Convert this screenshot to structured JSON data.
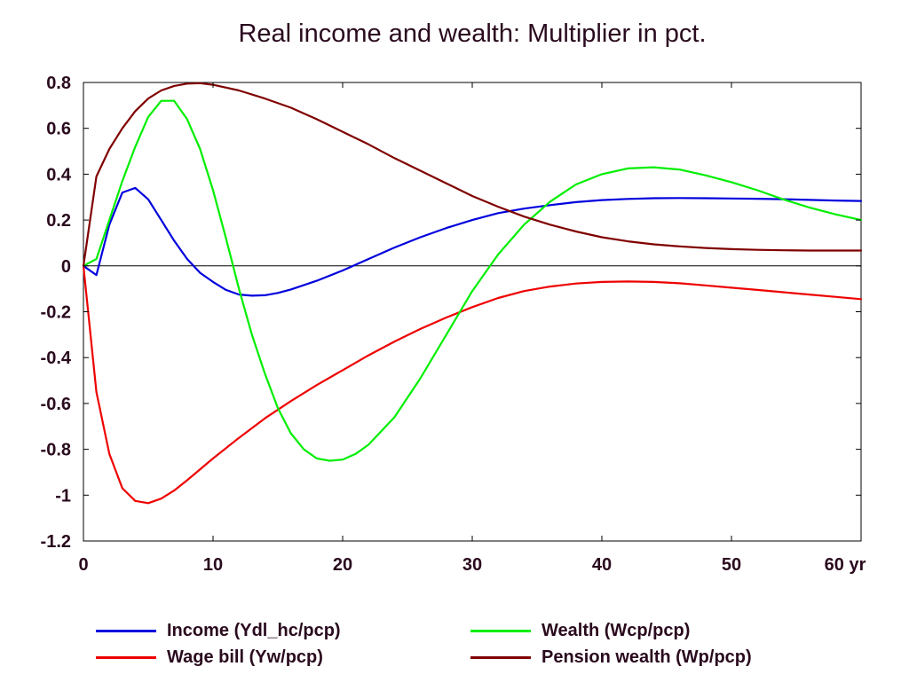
{
  "chart_data": {
    "type": "line",
    "title": "Real income and wealth: Multiplier in pct.",
    "xlabel": "",
    "ylabel": "",
    "x_unit_label": "yr",
    "xlim": [
      0,
      60
    ],
    "ylim": [
      -1.2,
      0.8
    ],
    "x_ticks": [
      0,
      10,
      20,
      30,
      40,
      50,
      60
    ],
    "x_tick_labels": [
      "0",
      "10",
      "20",
      "30",
      "40",
      "50",
      "60 yr"
    ],
    "y_ticks": [
      -1.2,
      -1,
      -0.8,
      -0.6,
      -0.4,
      -0.2,
      0,
      0.2,
      0.4,
      0.6,
      0.8
    ],
    "y_tick_labels": [
      "-1.2",
      "-1",
      "-0.8",
      "-0.6",
      "-0.4",
      "-0.2",
      "0",
      "0.2",
      "0.4",
      "0.6",
      "0.8"
    ],
    "grid": false,
    "zero_line": true,
    "legend_position": "bottom",
    "series": [
      {
        "name": "Income (Ydl_hc/pcp)",
        "color": "#0000dd",
        "x": [
          0,
          1,
          2,
          3,
          4,
          5,
          6,
          7,
          8,
          9,
          10,
          11,
          12,
          13,
          14,
          15,
          16,
          18,
          20,
          22,
          24,
          26,
          28,
          30,
          32,
          34,
          36,
          38,
          40,
          42,
          44,
          46,
          48,
          50,
          52,
          54,
          56,
          58,
          60
        ],
        "values": [
          0,
          -0.04,
          0.18,
          0.32,
          0.34,
          0.29,
          0.2,
          0.11,
          0.03,
          -0.03,
          -0.07,
          -0.105,
          -0.125,
          -0.13,
          -0.128,
          -0.118,
          -0.103,
          -0.065,
          -0.02,
          0.03,
          0.08,
          0.125,
          0.165,
          0.2,
          0.23,
          0.25,
          0.265,
          0.278,
          0.287,
          0.292,
          0.295,
          0.296,
          0.295,
          0.294,
          0.293,
          0.291,
          0.288,
          0.285,
          0.283
        ]
      },
      {
        "name": "Wage bill (Yw/pcp)",
        "color": "#ee0000",
        "x": [
          0,
          1,
          2,
          3,
          4,
          5,
          6,
          7,
          8,
          10,
          12,
          14,
          16,
          18,
          20,
          22,
          24,
          26,
          28,
          30,
          32,
          34,
          36,
          38,
          40,
          42,
          44,
          46,
          48,
          50,
          52,
          54,
          56,
          58,
          60
        ],
        "values": [
          0,
          -0.55,
          -0.82,
          -0.97,
          -1.025,
          -1.035,
          -1.015,
          -0.98,
          -0.935,
          -0.84,
          -0.75,
          -0.665,
          -0.59,
          -0.52,
          -0.455,
          -0.39,
          -0.33,
          -0.275,
          -0.225,
          -0.18,
          -0.14,
          -0.11,
          -0.09,
          -0.077,
          -0.07,
          -0.068,
          -0.07,
          -0.076,
          -0.085,
          -0.095,
          -0.105,
          -0.115,
          -0.125,
          -0.135,
          -0.145
        ]
      },
      {
        "name": "Wealth (Wcp/pcp)",
        "color": "#00ee00",
        "x": [
          0,
          1,
          2,
          3,
          4,
          5,
          6,
          7,
          8,
          9,
          10,
          11,
          12,
          13,
          14,
          15,
          16,
          17,
          18,
          19,
          20,
          21,
          22,
          24,
          26,
          28,
          30,
          32,
          34,
          36,
          38,
          40,
          42,
          44,
          46,
          48,
          50,
          52,
          54,
          56,
          58,
          60
        ],
        "values": [
          0,
          0.03,
          0.2,
          0.37,
          0.52,
          0.65,
          0.72,
          0.72,
          0.64,
          0.51,
          0.33,
          0.12,
          -0.1,
          -0.3,
          -0.47,
          -0.62,
          -0.73,
          -0.8,
          -0.84,
          -0.85,
          -0.845,
          -0.82,
          -0.78,
          -0.66,
          -0.49,
          -0.3,
          -0.11,
          0.05,
          0.18,
          0.28,
          0.355,
          0.4,
          0.425,
          0.43,
          0.42,
          0.395,
          0.365,
          0.33,
          0.29,
          0.255,
          0.225,
          0.2
        ]
      },
      {
        "name": "Pension wealth (Wp/pcp)",
        "color": "#800000",
        "x": [
          0,
          1,
          2,
          3,
          4,
          5,
          6,
          7,
          8,
          9,
          10,
          12,
          14,
          16,
          18,
          20,
          22,
          24,
          26,
          28,
          30,
          32,
          34,
          36,
          38,
          40,
          42,
          44,
          46,
          48,
          50,
          52,
          54,
          56,
          58,
          60
        ],
        "values": [
          0,
          0.39,
          0.51,
          0.6,
          0.675,
          0.73,
          0.765,
          0.785,
          0.795,
          0.797,
          0.79,
          0.765,
          0.73,
          0.69,
          0.64,
          0.585,
          0.53,
          0.47,
          0.415,
          0.36,
          0.305,
          0.258,
          0.215,
          0.18,
          0.15,
          0.125,
          0.107,
          0.094,
          0.085,
          0.078,
          0.073,
          0.07,
          0.068,
          0.067,
          0.067,
          0.067
        ]
      }
    ]
  }
}
